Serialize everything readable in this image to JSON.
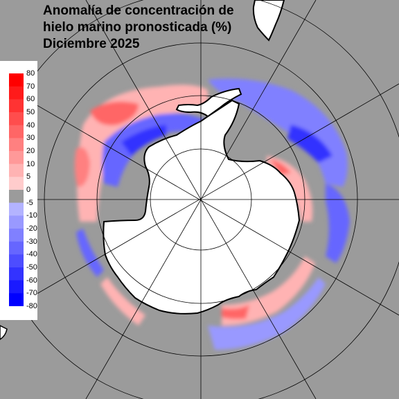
{
  "map": {
    "title_lines": [
      "Anomalía de concentración de",
      "hielo marino pronosticada (%)",
      "Diciembre 2025"
    ],
    "background_color": "#9b9b9b",
    "land_color": "#ffffff",
    "projection": "south-polar-stereographic",
    "legend": {
      "labels": [
        "80",
        "70",
        "60",
        "50",
        "40",
        "30",
        "20",
        "10",
        "5",
        "0",
        "-5",
        "-10",
        "-20",
        "-30",
        "-40",
        "-50",
        "-60",
        "-70",
        "-80"
      ],
      "colors": [
        "#ff0000",
        "#ff1a1a",
        "#ff3333",
        "#ff4d4d",
        "#ff6666",
        "#ff8080",
        "#ff9999",
        "#ffb3b3",
        "#ffcccc",
        "#9b9b9b",
        "#b3b3ff",
        "#9999ff",
        "#8080ff",
        "#6666ff",
        "#4d4dff",
        "#3333ff",
        "#1a1aff",
        "#0000ff"
      ]
    },
    "regions": [
      {
        "name": "weddell-sea-negative",
        "sign": "negative"
      },
      {
        "name": "bellingshausen-positive",
        "sign": "positive"
      },
      {
        "name": "indian-ocean-positive",
        "sign": "positive"
      },
      {
        "name": "ross-sea-positive",
        "sign": "positive"
      }
    ]
  }
}
